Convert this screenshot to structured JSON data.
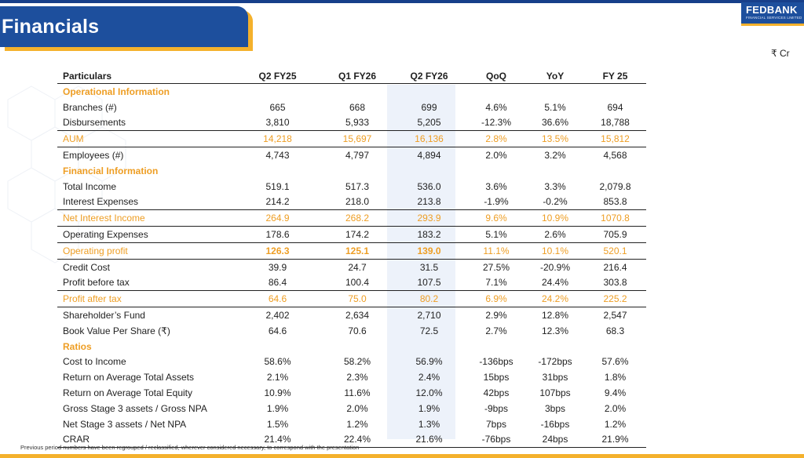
{
  "header": {
    "title": "Financials",
    "logo_brand": "FEDBANK",
    "logo_sub": "FINANCIAL SERVICES LIMITED",
    "currency": "₹ Cr"
  },
  "table": {
    "columns": [
      "Particulars",
      "Q2 FY25",
      "Q1 FY26",
      "Q2 FY26",
      "QoQ",
      "YoY",
      "FY 25"
    ],
    "rows": [
      {
        "type": "section",
        "label": "Operational Information"
      },
      {
        "label": "Branches (#)",
        "values": [
          "665",
          "668",
          "699",
          "4.6%",
          "5.1%",
          "694"
        ]
      },
      {
        "label": "Disbursements",
        "values": [
          "3,810",
          "5,933",
          "5,205",
          "-12.3%",
          "36.6%",
          "18,788"
        ]
      },
      {
        "label": "AUM",
        "values": [
          "14,218",
          "15,697",
          "16,136",
          "2.8%",
          "13.5%",
          "15,812"
        ],
        "style": "orange",
        "borderTop": true,
        "borderBottom": true
      },
      {
        "label": "Employees (#)",
        "values": [
          "4,743",
          "4,797",
          "4,894",
          "2.0%",
          "3.2%",
          "4,568"
        ]
      },
      {
        "type": "section",
        "label": "Financial Information"
      },
      {
        "label": "Total Income",
        "values": [
          "519.1",
          "517.3",
          "536.0",
          "3.6%",
          "3.3%",
          "2,079.8"
        ]
      },
      {
        "label": "Interest Expenses",
        "values": [
          "214.2",
          "218.0",
          "213.8",
          "-1.9%",
          "-0.2%",
          "853.8"
        ]
      },
      {
        "label": "Net Interest Income",
        "values": [
          "264.9",
          "268.2",
          "293.9",
          "9.6%",
          "10.9%",
          "1070.8"
        ],
        "style": "orange",
        "borderTop": true,
        "borderBottom": true
      },
      {
        "label": "Operating Expenses",
        "values": [
          "178.6",
          "174.2",
          "183.2",
          "5.1%",
          "2.6%",
          "705.9"
        ]
      },
      {
        "label": "Operating profit",
        "values": [
          "126.3",
          "125.1",
          "139.0",
          "11.1%",
          "10.1%",
          "520.1"
        ],
        "style": "orange",
        "boldValues": true,
        "borderTop": true,
        "borderBottom": true
      },
      {
        "label": "Credit Cost",
        "values": [
          "39.9",
          "24.7",
          "31.5",
          "27.5%",
          "-20.9%",
          "216.4"
        ]
      },
      {
        "label": "Profit before tax",
        "values": [
          "86.4",
          "100.4",
          "107.5",
          "7.1%",
          "24.4%",
          "303.8"
        ]
      },
      {
        "label": "Profit after tax",
        "values": [
          "64.6",
          "75.0",
          "80.2",
          "6.9%",
          "24.2%",
          "225.2"
        ],
        "style": "orange",
        "borderTop": true,
        "borderBottom": true
      },
      {
        "label": "Shareholder’s Fund",
        "values": [
          "2,402",
          "2,634",
          "2,710",
          "2.9%",
          "12.8%",
          "2,547"
        ]
      },
      {
        "label": "Book Value Per Share (₹)",
        "values": [
          "64.6",
          "70.6",
          "72.5",
          "2.7%",
          "12.3%",
          "68.3"
        ]
      },
      {
        "type": "section",
        "label": "Ratios"
      },
      {
        "label": "Cost to Income",
        "values": [
          "58.6%",
          "58.2%",
          "56.9%",
          "-136bps",
          "-172bps",
          "57.6%"
        ]
      },
      {
        "label": "Return on Average Total Assets",
        "values": [
          "2.1%",
          "2.3%",
          "2.4%",
          "15bps",
          "31bps",
          "1.8%"
        ]
      },
      {
        "label": "Return on Average Total Equity",
        "values": [
          "10.9%",
          "11.6%",
          "12.0%",
          "42bps",
          "107bps",
          "9.4%"
        ]
      },
      {
        "label": "Gross Stage 3 assets  /  Gross NPA",
        "values": [
          "1.9%",
          "2.0%",
          "1.9%",
          "-9bps",
          "3bps",
          "2.0%"
        ]
      },
      {
        "label": "Net Stage 3 assets  /  Net NPA",
        "values": [
          "1.5%",
          "1.2%",
          "1.3%",
          "7bps",
          "-16bps",
          "1.2%"
        ]
      },
      {
        "label": "CRAR",
        "values": [
          "21.4%",
          "22.4%",
          "21.6%",
          "-76bps",
          "24bps",
          "21.9%"
        ]
      }
    ]
  },
  "footnote": "Previous period numbers have been regrouped / reclassified, wherever considered necessary, to correspond with the presentation",
  "colors": {
    "brand_blue": "#1d4f9d",
    "accent_orange": "#ee9e24",
    "accent_yellow": "#f4b12c"
  }
}
